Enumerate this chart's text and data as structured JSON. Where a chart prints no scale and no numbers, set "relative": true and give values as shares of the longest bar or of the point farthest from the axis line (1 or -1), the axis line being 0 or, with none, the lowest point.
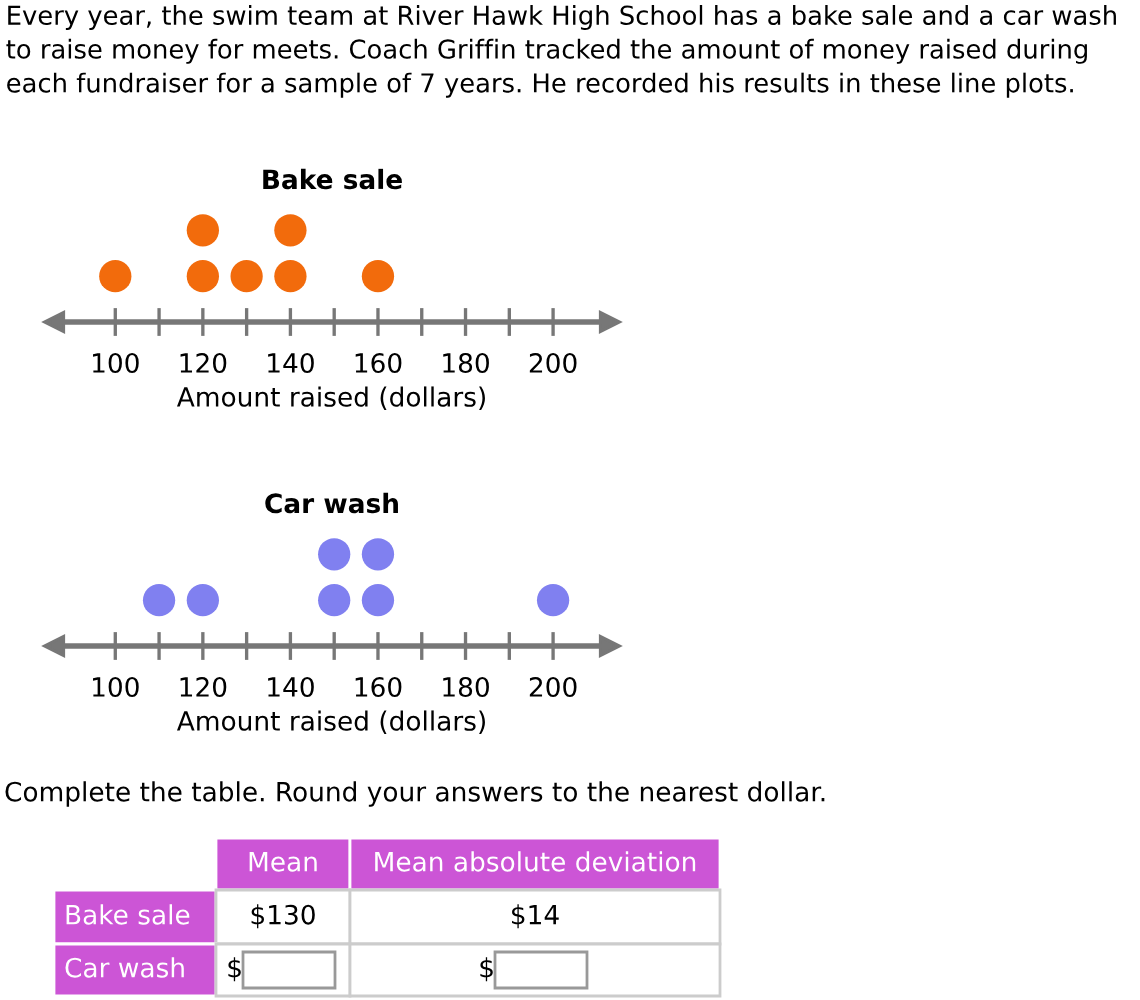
{
  "chart_data": [
    {
      "type": "scatter",
      "title": "Bake sale",
      "xlabel": "Amount raised (dollars)",
      "relative": true,
      "color": "#f26b0c",
      "marker": "circle",
      "grid": false,
      "tick_labels": "x",
      "annotations": [
        "Every year, the swim team at River Hawk High School has a bake sale and a car wash to raise money for meets. Coach Griffin tracked the amount of money raised during each fundraiser for a sample of 7 years. He recorded his results in these line plots."
      ],
      "x": [
        100,
        120,
        120,
        130,
        140,
        140,
        160
      ],
      "values": [
        0.5,
        0.5,
        1,
        0.5,
        0.5,
        1,
        0.5
      ],
      "xlim": [
        86,
        213
      ],
      "xticks": [
        100,
        {
          "value": 110,
          "label": null
        },
        120,
        {
          "value": 130,
          "label": null
        },
        140,
        {
          "value": 150,
          "label": null
        },
        160,
        {
          "value": 170,
          "label": null
        },
        180,
        {
          "value": 190,
          "label": null
        },
        200
      ]
    },
    {
      "type": "scatter",
      "title": "Car wash",
      "xlabel": "Amount raised (dollars)",
      "relative": true,
      "color": "#8080f0",
      "marker": "circle",
      "grid": false,
      "tick_labels": "x",
      "x": [
        110,
        120,
        150,
        150,
        160,
        160,
        200
      ],
      "values": [
        0.5,
        0.5,
        0.5,
        1,
        0.5,
        1,
        0.5
      ],
      "xlim": [
        86,
        213
      ],
      "xticks": [
        100,
        {
          "value": 110,
          "label": null
        },
        120,
        {
          "value": 130,
          "label": null
        },
        140,
        {
          "value": 150,
          "label": null
        },
        160,
        {
          "value": 170,
          "label": null
        },
        180,
        {
          "value": 190,
          "label": null
        },
        200
      ]
    },
    {
      "type": "other",
      "title": "Complete the table. Round your answers to the nearest dollar.",
      "annotations": [
        "Mean",
        "Mean absolute deviation",
        "Bake sale",
        "$130",
        "$14",
        "Car wash",
        "$",
        "$"
      ]
    }
  ]
}
